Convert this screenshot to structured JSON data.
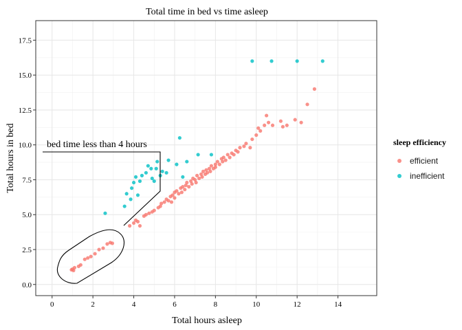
{
  "chart_data": {
    "type": "scatter",
    "title": "Total time in bed vs time asleep",
    "xlabel": "Total hours asleep",
    "ylabel": "Total hours in bed",
    "xlim": [
      -0.8,
      15.9
    ],
    "ylim": [
      -0.8,
      18.9
    ],
    "x_ticks": [
      0,
      2,
      4,
      6,
      8,
      10,
      12,
      14
    ],
    "x_tick_labels": [
      "0",
      "2",
      "4",
      "6",
      "8",
      "10",
      "12",
      "14"
    ],
    "y_ticks": [
      0,
      2.5,
      5,
      7.5,
      10,
      12.5,
      15,
      17.5
    ],
    "y_tick_labels": [
      "0.0",
      "2.5",
      "5.0",
      "7.5",
      "10.0",
      "12.5",
      "15.0",
      "17.5"
    ],
    "grid": true,
    "legend": {
      "title": "sleep efficiency",
      "position": "right"
    },
    "series": [
      {
        "name": "efficient",
        "color": "#F8766D",
        "points": [
          [
            0.95,
            1.05
          ],
          [
            1.0,
            1.1
          ],
          [
            1.05,
            1.0
          ],
          [
            1.1,
            1.2
          ],
          [
            1.3,
            1.3
          ],
          [
            1.4,
            1.4
          ],
          [
            1.6,
            1.8
          ],
          [
            1.75,
            1.9
          ],
          [
            1.9,
            2.0
          ],
          [
            2.1,
            2.2
          ],
          [
            2.3,
            2.5
          ],
          [
            2.5,
            2.6
          ],
          [
            2.7,
            2.9
          ],
          [
            2.85,
            3.0
          ],
          [
            2.95,
            2.95
          ],
          [
            3.8,
            4.2
          ],
          [
            4.0,
            4.4
          ],
          [
            4.1,
            4.6
          ],
          [
            4.2,
            4.5
          ],
          [
            4.3,
            4.2
          ],
          [
            4.5,
            4.9
          ],
          [
            4.6,
            5.0
          ],
          [
            4.75,
            5.1
          ],
          [
            4.9,
            5.2
          ],
          [
            5.0,
            5.3
          ],
          [
            5.2,
            5.5
          ],
          [
            5.3,
            5.6
          ],
          [
            5.35,
            5.8
          ],
          [
            5.5,
            5.9
          ],
          [
            5.6,
            6.1
          ],
          [
            5.7,
            6.0
          ],
          [
            5.8,
            6.3
          ],
          [
            5.85,
            5.9
          ],
          [
            5.9,
            6.4
          ],
          [
            6.0,
            6.6
          ],
          [
            6.0,
            6.2
          ],
          [
            6.1,
            6.7
          ],
          [
            6.2,
            6.5
          ],
          [
            6.3,
            6.9
          ],
          [
            6.35,
            6.6
          ],
          [
            6.4,
            7.0
          ],
          [
            6.5,
            6.8
          ],
          [
            6.55,
            7.1
          ],
          [
            6.6,
            7.3
          ],
          [
            6.7,
            7.0
          ],
          [
            6.8,
            7.4
          ],
          [
            6.85,
            7.2
          ],
          [
            6.9,
            7.6
          ],
          [
            7.0,
            7.5
          ],
          [
            7.05,
            7.3
          ],
          [
            7.1,
            7.8
          ],
          [
            7.2,
            7.6
          ],
          [
            7.3,
            7.9
          ],
          [
            7.35,
            7.7
          ],
          [
            7.4,
            8.1
          ],
          [
            7.5,
            7.9
          ],
          [
            7.55,
            8.2
          ],
          [
            7.6,
            8.0
          ],
          [
            7.7,
            8.3
          ],
          [
            7.75,
            8.1
          ],
          [
            7.8,
            8.5
          ],
          [
            7.9,
            8.3
          ],
          [
            8.0,
            8.6
          ],
          [
            8.0,
            8.4
          ],
          [
            8.1,
            8.8
          ],
          [
            8.2,
            8.6
          ],
          [
            8.3,
            9.0
          ],
          [
            8.35,
            8.8
          ],
          [
            8.4,
            9.1
          ],
          [
            8.5,
            8.9
          ],
          [
            8.6,
            9.3
          ],
          [
            8.7,
            9.1
          ],
          [
            8.8,
            9.4
          ],
          [
            8.9,
            9.3
          ],
          [
            9.0,
            9.6
          ],
          [
            9.1,
            9.5
          ],
          [
            9.2,
            9.8
          ],
          [
            9.4,
            9.9
          ],
          [
            9.5,
            10.1
          ],
          [
            9.7,
            9.8
          ],
          [
            9.8,
            10.4
          ],
          [
            10.0,
            10.7
          ],
          [
            10.1,
            11.2
          ],
          [
            10.2,
            11.0
          ],
          [
            10.4,
            11.4
          ],
          [
            10.5,
            12.1
          ],
          [
            10.6,
            11.6
          ],
          [
            10.8,
            11.4
          ],
          [
            11.2,
            11.7
          ],
          [
            11.3,
            11.3
          ],
          [
            11.5,
            11.4
          ],
          [
            11.9,
            11.8
          ],
          [
            12.2,
            11.6
          ],
          [
            12.5,
            12.9
          ],
          [
            12.85,
            14.0
          ]
        ]
      },
      {
        "name": "inefficient",
        "color": "#00BFC4",
        "points": [
          [
            2.6,
            5.1
          ],
          [
            3.55,
            5.6
          ],
          [
            3.65,
            6.5
          ],
          [
            3.85,
            6.1
          ],
          [
            3.9,
            6.9
          ],
          [
            4.0,
            7.3
          ],
          [
            4.1,
            7.7
          ],
          [
            4.2,
            6.4
          ],
          [
            4.3,
            7.4
          ],
          [
            4.4,
            7.8
          ],
          [
            4.6,
            8.0
          ],
          [
            4.7,
            8.5
          ],
          [
            4.85,
            8.3
          ],
          [
            4.9,
            7.6
          ],
          [
            5.0,
            7.4
          ],
          [
            5.1,
            8.3
          ],
          [
            5.15,
            8.8
          ],
          [
            5.3,
            7.8
          ],
          [
            5.4,
            8.1
          ],
          [
            5.6,
            8.0
          ],
          [
            5.7,
            8.9
          ],
          [
            6.1,
            8.6
          ],
          [
            6.25,
            10.5
          ],
          [
            6.4,
            7.7
          ],
          [
            6.6,
            8.8
          ],
          [
            7.15,
            9.3
          ],
          [
            7.8,
            9.3
          ],
          [
            9.8,
            16.0
          ],
          [
            10.75,
            16.0
          ],
          [
            12.0,
            16.0
          ],
          [
            13.25,
            16.0
          ]
        ]
      }
    ],
    "annotation": {
      "text": "bed time less than 4 hours"
    }
  }
}
